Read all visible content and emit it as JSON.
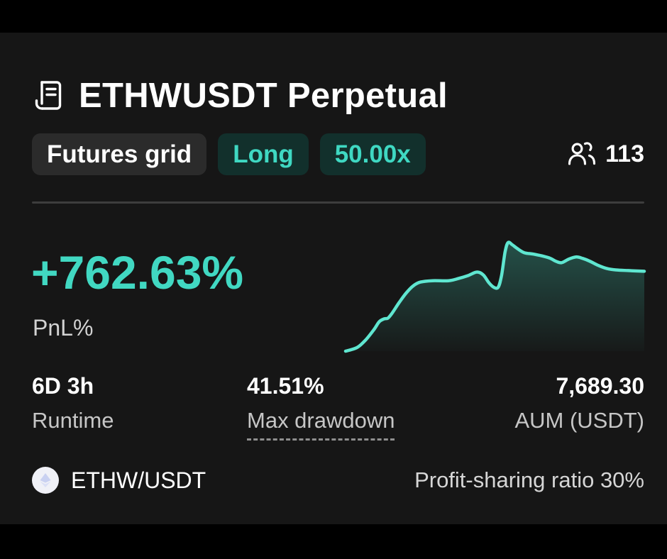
{
  "card": {
    "icon": "contract-icon",
    "title": "ETHWUSDT Perpetual",
    "tags": [
      {
        "label": "Futures grid",
        "variant": "neutral"
      },
      {
        "label": "Long",
        "variant": "teal"
      },
      {
        "label": "50.00x",
        "variant": "teal"
      }
    ],
    "followers": {
      "icon": "users-icon",
      "count": "113"
    },
    "pnl": {
      "value": "+762.63%",
      "label": "PnL%"
    },
    "stats": {
      "runtime": {
        "value": "6D 3h",
        "label": "Runtime"
      },
      "max_drawdown": {
        "value": "41.51%",
        "label": "Max drawdown"
      },
      "aum": {
        "value": "7,689.30",
        "label": "AUM (USDT)"
      }
    },
    "pair": {
      "icon": "ethw-coin-icon",
      "label": "ETHW/USDT"
    },
    "profit_sharing": "Profit-sharing ratio 30%"
  },
  "colors": {
    "page_bg": "#000000",
    "card_bg": "#161616",
    "accent_teal": "#41d8c2",
    "chart_line": "#5fe6d0",
    "chart_fill_top": "rgba(70,216,190,0.30)",
    "chart_fill_bottom": "rgba(70,216,190,0.02)",
    "tag_neutral_bg": "#2b2b2b",
    "tag_teal_bg": "#12302c",
    "divider": "#3d3d3d",
    "label_gray": "#c6c6c6"
  },
  "chart_data": {
    "type": "area",
    "title": "PnL% over runtime (sparkline, no axes shown)",
    "xlabel": "",
    "ylabel": "PnL %",
    "grid": false,
    "legend": false,
    "ylim": [
      0,
      1037
    ],
    "x": [
      0,
      3.8,
      6.6,
      9.5,
      11.3,
      13,
      14.2,
      15.6,
      18,
      20.3,
      22.7,
      25.1,
      29.1,
      34.5,
      37.8,
      40.9,
      44,
      46.1,
      48,
      49.6,
      51.1,
      52.2,
      53.4,
      54.4,
      55.8,
      57.4,
      59.8,
      62.9,
      66.2,
      68.6,
      70.4,
      72.3,
      74.7,
      77.1,
      79.4,
      81.8,
      84.2,
      87.4,
      90.5,
      94.6,
      100
    ],
    "values": [
      0,
      34,
      103,
      206,
      282,
      309,
      316,
      364,
      467,
      556,
      625,
      660,
      673,
      673,
      694,
      721,
      756,
      728,
      653,
      611,
      611,
      721,
      948,
      1037,
      1017,
      982,
      941,
      927,
      907,
      886,
      859,
      845,
      879,
      900,
      886,
      859,
      824,
      790,
      776,
      770,
      763
    ]
  }
}
